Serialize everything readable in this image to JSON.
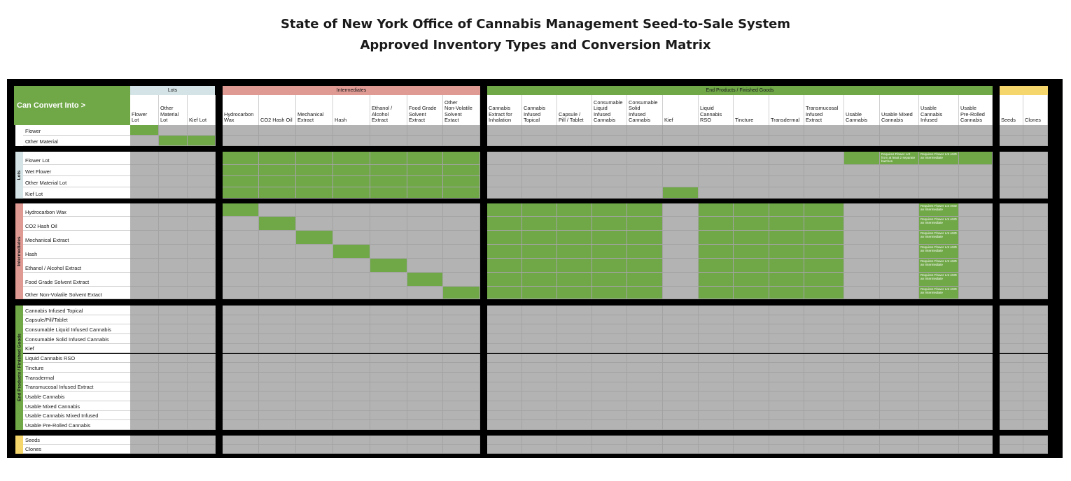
{
  "title_line1": "State of New York Office of Cannabis Management Seed-to-Sale System",
  "title_line2": "Approved Inventory Types and Conversion Matrix",
  "corner_label": "Can Convert Into >",
  "colors": {
    "allowed": "#70a848",
    "not_allowed": "#b3b3b3",
    "lots": "#d4e3e6",
    "intermediates": "#e09a94",
    "end_products": "#70a848",
    "propagation": "#f5d66c"
  },
  "chart_data": {
    "type": "table",
    "title": "Approved Inventory Types and Conversion Matrix",
    "column_groups": [
      {
        "name": "Lots",
        "color": "#d4e3e6",
        "columns": [
          "Flower\nLot",
          "Other\nMaterial\nLot",
          "Kief Lot"
        ]
      },
      {
        "name": "Intermediates",
        "color": "#e09a94",
        "columns": [
          "Hydrocarbon\nWax",
          "CO2 Hash Oil",
          "Mechanical\nExtract",
          "Hash",
          "Ethanol /\nAlcohol\nExtract",
          "Food Grade\nSolvent\nExtract",
          "Other\nNon-Volatile\nSolvent\nExtact"
        ]
      },
      {
        "name": "End Products / Finished Goods",
        "color": "#70a848",
        "columns": [
          "Cannabis\nExtract for\nInhalation",
          "Cannabis\nInfused\nTopical",
          "Capsule /\nPill / Tablet",
          "Consumable\nLiquid\nInfused\nCannabis",
          "Consumable\nSolid\nInfused\nCannabis",
          "Kief",
          "Liquid\nCannabis\nRSO",
          "Tincture",
          "Transdermal",
          "Transmucosal\nInfused\nExtract",
          "Usable\nCannabis",
          "Usable Mixed\nCannabis",
          "Usable\nCannabis\nInfused",
          "Usable\nPre-Rolled\nCannabis"
        ]
      },
      {
        "name": "",
        "color": "#f5d66c",
        "columns": [
          "Seeds",
          "Clones"
        ]
      }
    ],
    "row_groups": [
      {
        "name": "",
        "color": "#ffffff",
        "rows": [
          "Flower",
          "Other Material"
        ]
      },
      {
        "name": "Lots",
        "color": "#d4e3e6",
        "rows": [
          "Flower Lot",
          "Wet Flower",
          "Other Material Lot",
          "Kief Lot"
        ]
      },
      {
        "name": "Intermediates",
        "color": "#e09a94",
        "rows": [
          "Hydrocarbon Wax",
          "CO2 Hash Oil",
          "Mechanical Extract",
          "Hash",
          "Ethanol / Alcohol Extract",
          "Food Grade Solvent Extract",
          "Other Non-Volatile Solvent Extact"
        ]
      },
      {
        "name": "End Products / Finished Goods",
        "color": "#70a848",
        "rows": [
          "Cannabis Infused Topical",
          "Capsule/Pill/Tablet",
          "Consumable Liquid Infused Cannabis",
          "Consumable Solid Infused Cannabis",
          "Kief",
          "Liquid Cannabis RSO",
          "Tincture",
          "Transdermal",
          "Transmucosal Infused Extract",
          "Usable Cannabis",
          "Usable Mixed Cannabis",
          "Usable Cannabis Mixed Infused",
          "Usable Pre-Rolled Cannabis"
        ]
      },
      {
        "name": "",
        "color": "#f5d66c",
        "rows": [
          "Seeds",
          "Clones"
        ]
      }
    ],
    "allowed": [
      [
        "Flower",
        "Flower\nLot"
      ],
      [
        "Other Material",
        "Other\nMaterial\nLot"
      ],
      [
        "Other Material",
        "Kief Lot"
      ],
      [
        "Flower Lot",
        "Hydrocarbon\nWax"
      ],
      [
        "Flower Lot",
        "CO2 Hash Oil"
      ],
      [
        "Flower Lot",
        "Mechanical\nExtract"
      ],
      [
        "Flower Lot",
        "Hash"
      ],
      [
        "Flower Lot",
        "Ethanol /\nAlcohol\nExtract"
      ],
      [
        "Flower Lot",
        "Food Grade\nSolvent\nExtract"
      ],
      [
        "Flower Lot",
        "Other\nNon-Volatile\nSolvent\nExtact"
      ],
      [
        "Flower Lot",
        "Usable\nCannabis"
      ],
      [
        "Flower Lot",
        "Usable Mixed\nCannabis"
      ],
      [
        "Flower Lot",
        "Usable\nCannabis\nInfused"
      ],
      [
        "Flower Lot",
        "Usable\nPre-Rolled\nCannabis"
      ],
      [
        "Wet Flower",
        "Hydrocarbon\nWax"
      ],
      [
        "Wet Flower",
        "CO2 Hash Oil"
      ],
      [
        "Wet Flower",
        "Mechanical\nExtract"
      ],
      [
        "Wet Flower",
        "Hash"
      ],
      [
        "Wet Flower",
        "Ethanol /\nAlcohol\nExtract"
      ],
      [
        "Wet Flower",
        "Food Grade\nSolvent\nExtract"
      ],
      [
        "Wet Flower",
        "Other\nNon-Volatile\nSolvent\nExtact"
      ],
      [
        "Other Material Lot",
        "Hydrocarbon\nWax"
      ],
      [
        "Other Material Lot",
        "CO2 Hash Oil"
      ],
      [
        "Other Material Lot",
        "Mechanical\nExtract"
      ],
      [
        "Other Material Lot",
        "Hash"
      ],
      [
        "Other Material Lot",
        "Ethanol /\nAlcohol\nExtract"
      ],
      [
        "Other Material Lot",
        "Food Grade\nSolvent\nExtract"
      ],
      [
        "Other Material Lot",
        "Other\nNon-Volatile\nSolvent\nExtact"
      ],
      [
        "Kief Lot",
        "Hydrocarbon\nWax"
      ],
      [
        "Kief Lot",
        "CO2 Hash Oil"
      ],
      [
        "Kief Lot",
        "Mechanical\nExtract"
      ],
      [
        "Kief Lot",
        "Hash"
      ],
      [
        "Kief Lot",
        "Ethanol /\nAlcohol\nExtract"
      ],
      [
        "Kief Lot",
        "Food Grade\nSolvent\nExtract"
      ],
      [
        "Kief Lot",
        "Other\nNon-Volatile\nSolvent\nExtact"
      ],
      [
        "Kief Lot",
        "Kief"
      ],
      [
        "Hydrocarbon Wax",
        "Hydrocarbon\nWax"
      ],
      [
        "CO2 Hash Oil",
        "CO2 Hash Oil"
      ],
      [
        "Mechanical Extract",
        "Mechanical\nExtract"
      ],
      [
        "Hash",
        "Hash"
      ],
      [
        "Ethanol / Alcohol Extract",
        "Ethanol /\nAlcohol\nExtract"
      ],
      [
        "Food Grade Solvent Extract",
        "Food Grade\nSolvent\nExtract"
      ],
      [
        "Other Non-Volatile Solvent Extact",
        "Other\nNon-Volatile\nSolvent\nExtact"
      ]
    ],
    "allowed_intermediate_to_end_products": [
      "Cannabis\nExtract for\nInhalation",
      "Cannabis\nInfused\nTopical",
      "Capsule /\nPill / Tablet",
      "Consumable\nLiquid\nInfused\nCannabis",
      "Consumable\nSolid\nInfused\nCannabis",
      "Liquid\nCannabis\nRSO",
      "Tincture",
      "Transdermal",
      "Transmucosal\nInfused\nExtract",
      "Usable\nCannabis\nInfused"
    ],
    "notes": [
      {
        "row": "Flower Lot",
        "column": "Usable Mixed\nCannabis",
        "text": "Requires Flower Lot from at least 2 separate batches"
      },
      {
        "row": "Flower Lot",
        "column": "Usable\nCannabis\nInfused",
        "text": "Requires Flower Lot AND an Intermediate"
      },
      {
        "row": "*Intermediates",
        "column": "Usable\nCannabis\nInfused",
        "text": "Requires Flower Lot AND an Intermediate"
      }
    ]
  }
}
